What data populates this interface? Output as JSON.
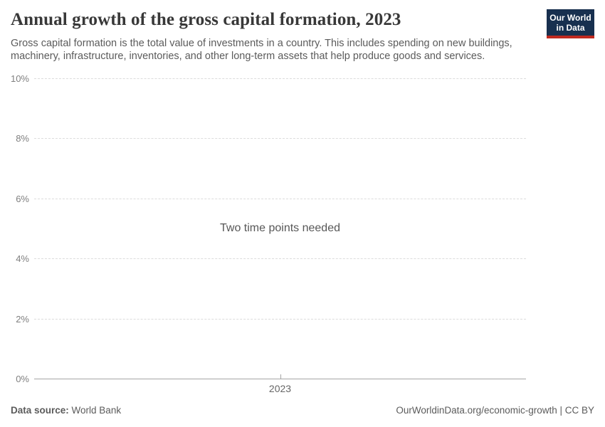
{
  "header": {
    "title": "Annual growth of the gross capital formation, 2023",
    "subtitle": "Gross capital formation is the total value of investments in a country. This includes spending on new buildings, machinery, infrastructure, inventories, and other long-term assets that help produce goods and services.",
    "logo": {
      "line1": "Our World",
      "line2": "in Data",
      "bg_color": "#18304f",
      "stripe_color": "#c0291f",
      "text_color": "#ffffff"
    }
  },
  "chart_data": {
    "type": "line",
    "title": "Annual growth of the gross capital formation, 2023",
    "xlabel": "",
    "ylabel": "",
    "ylim": [
      0,
      10
    ],
    "yticks": [
      0,
      2,
      4,
      6,
      8,
      10
    ],
    "ytick_labels": [
      "0%",
      "2%",
      "4%",
      "6%",
      "8%",
      "10%"
    ],
    "x_tick_labels": [
      "2023"
    ],
    "grid": true,
    "legend": "none",
    "series": [],
    "empty_message": "Two time points needed"
  },
  "footer": {
    "data_source_label": "Data source:",
    "data_source_value": "World Bank",
    "attribution": "OurWorldinData.org/economic-growth | CC BY"
  },
  "colors": {
    "title": "#383838",
    "subtitle": "#5b5b5b",
    "tick_label": "#7f7f7f",
    "gridline": "#dcdcdc",
    "axis_line": "#a5a5a5",
    "empty_message": "#575757"
  }
}
